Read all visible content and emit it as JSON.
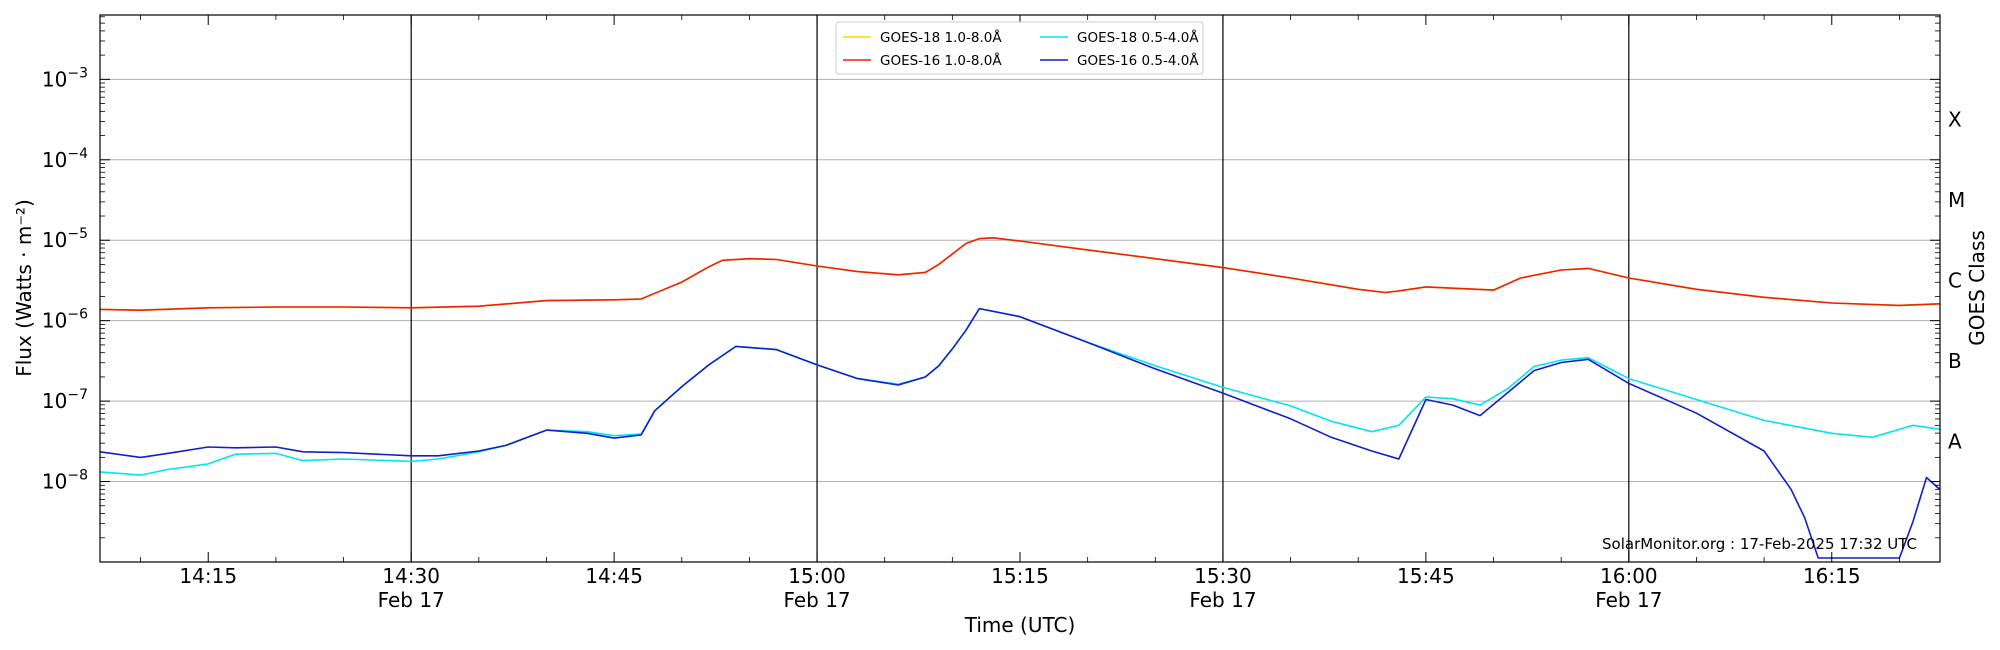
{
  "chart_data": {
    "type": "line",
    "title": "",
    "xlabel": "Time (UTC)",
    "ylabel": "Flux (Watts · m⁻²)",
    "ylabel_right": "GOES Class",
    "watermark": "SolarMonitor.org : 17-Feb-2025 17:32 UTC",
    "y_scale": "log",
    "ylim_exponents": [
      -9,
      1
    ],
    "xlim": [
      "14:07",
      "16:23"
    ],
    "grid": "horizontal at decades; vertical lines every 30 min",
    "legend_position": "top-center",
    "x_ticks": [
      {
        "time": "14:15",
        "label": "14:15",
        "date": ""
      },
      {
        "time": "14:30",
        "label": "14:30",
        "date": "Feb 17"
      },
      {
        "time": "14:45",
        "label": "14:45",
        "date": ""
      },
      {
        "time": "15:00",
        "label": "15:00",
        "date": "Feb 17"
      },
      {
        "time": "15:15",
        "label": "15:15",
        "date": ""
      },
      {
        "time": "15:30",
        "label": "15:30",
        "date": "Feb 17"
      },
      {
        "time": "15:45",
        "label": "15:45",
        "date": ""
      },
      {
        "time": "16:00",
        "label": "16:00",
        "date": "Feb 17"
      },
      {
        "time": "16:15",
        "label": "16:15",
        "date": ""
      }
    ],
    "y_ticks": [
      {
        "exp": -8,
        "base": "10",
        "sup": "−8"
      },
      {
        "exp": -7,
        "base": "10",
        "sup": "−7"
      },
      {
        "exp": -6,
        "base": "10",
        "sup": "−6"
      },
      {
        "exp": -5,
        "base": "10",
        "sup": "−5"
      },
      {
        "exp": -4,
        "base": "10",
        "sup": "−4"
      },
      {
        "exp": -3,
        "base": "10",
        "sup": "−3"
      }
    ],
    "goes_classes": [
      {
        "label": "A",
        "exp": -7.5
      },
      {
        "label": "B",
        "exp": -6.5
      },
      {
        "label": "C",
        "exp": -5.5
      },
      {
        "label": "M",
        "exp": -4.5
      },
      {
        "label": "X",
        "exp": -3.5
      }
    ],
    "series": [
      {
        "name": "GOES-18 1.0-8.0Å",
        "color": "#ffd700",
        "unit": "log10 flux",
        "x": [
          "14:07",
          "14:10",
          "14:15",
          "14:20",
          "14:25",
          "14:30",
          "14:35",
          "14:40",
          "14:45",
          "14:47",
          "14:48",
          "14:50",
          "14:52",
          "14:53",
          "14:55",
          "14:57",
          "15:00",
          "15:03",
          "15:06",
          "15:08",
          "15:09",
          "15:11",
          "15:12",
          "15:13",
          "15:15",
          "15:20",
          "15:25",
          "15:30",
          "15:35",
          "15:40",
          "15:42",
          "15:43",
          "15:45",
          "15:50",
          "15:52",
          "15:55",
          "15:57",
          "16:00",
          "16:05",
          "16:10",
          "16:15",
          "16:20",
          "16:23"
        ],
        "y": [
          -5.86,
          -5.87,
          -5.84,
          -5.83,
          -5.83,
          -5.84,
          -5.82,
          -5.75,
          -5.74,
          -5.73,
          -5.66,
          -5.52,
          -5.33,
          -5.25,
          -5.23,
          -5.24,
          -5.32,
          -5.39,
          -5.43,
          -5.4,
          -5.3,
          -5.04,
          -4.98,
          -4.97,
          -5.01,
          -5.12,
          -5.23,
          -5.34,
          -5.47,
          -5.61,
          -5.65,
          -5.63,
          -5.58,
          -5.62,
          -5.47,
          -5.37,
          -5.35,
          -5.47,
          -5.61,
          -5.71,
          -5.78,
          -5.81,
          -5.79
        ]
      },
      {
        "name": "GOES-16 1.0-8.0Å",
        "color": "#ee2200",
        "unit": "log10 flux",
        "x": [
          "14:07",
          "14:10",
          "14:15",
          "14:20",
          "14:25",
          "14:30",
          "14:35",
          "14:40",
          "14:45",
          "14:47",
          "14:48",
          "14:50",
          "14:52",
          "14:53",
          "14:55",
          "14:57",
          "15:00",
          "15:03",
          "15:06",
          "15:08",
          "15:09",
          "15:11",
          "15:12",
          "15:13",
          "15:15",
          "15:20",
          "15:25",
          "15:30",
          "15:35",
          "15:40",
          "15:42",
          "15:43",
          "15:45",
          "15:50",
          "15:52",
          "15:55",
          "15:57",
          "16:00",
          "16:05",
          "16:10",
          "16:15",
          "16:20",
          "16:23"
        ],
        "y": [
          -5.86,
          -5.87,
          -5.84,
          -5.83,
          -5.83,
          -5.84,
          -5.82,
          -5.75,
          -5.74,
          -5.73,
          -5.66,
          -5.52,
          -5.33,
          -5.25,
          -5.23,
          -5.24,
          -5.32,
          -5.39,
          -5.43,
          -5.4,
          -5.3,
          -5.04,
          -4.98,
          -4.97,
          -5.01,
          -5.12,
          -5.23,
          -5.34,
          -5.47,
          -5.61,
          -5.65,
          -5.63,
          -5.58,
          -5.62,
          -5.47,
          -5.37,
          -5.35,
          -5.47,
          -5.61,
          -5.71,
          -5.78,
          -5.81,
          -5.79
        ]
      },
      {
        "name": "GOES-18 0.5-4.0Å",
        "color": "#00e5ee",
        "unit": "log10 flux",
        "x": [
          "14:07",
          "14:10",
          "14:12",
          "14:15",
          "14:17",
          "14:20",
          "14:22",
          "14:25",
          "14:30",
          "14:32",
          "14:35",
          "14:37",
          "14:40",
          "14:43",
          "14:45",
          "14:47",
          "14:48",
          "14:50",
          "14:52",
          "14:54",
          "14:57",
          "15:00",
          "15:03",
          "15:06",
          "15:08",
          "15:09",
          "15:10",
          "15:11",
          "15:12",
          "15:15",
          "15:20",
          "15:25",
          "15:30",
          "15:35",
          "15:38",
          "15:41",
          "15:43",
          "15:45",
          "15:47",
          "15:49",
          "15:51",
          "15:53",
          "15:55",
          "15:57",
          "16:00",
          "16:05",
          "16:10",
          "16:15",
          "16:18",
          "16:21",
          "16:23"
        ],
        "y": [
          -7.88,
          -7.92,
          -7.85,
          -7.78,
          -7.66,
          -7.65,
          -7.74,
          -7.72,
          -7.75,
          -7.72,
          -7.63,
          -7.55,
          -7.36,
          -7.38,
          -7.43,
          -7.41,
          -7.12,
          -6.82,
          -6.55,
          -6.32,
          -6.36,
          -6.55,
          -6.72,
          -6.79,
          -6.7,
          -6.56,
          -6.35,
          -6.12,
          -5.85,
          -5.95,
          -6.27,
          -6.56,
          -6.83,
          -7.06,
          -7.25,
          -7.38,
          -7.3,
          -6.95,
          -6.97,
          -7.05,
          -6.85,
          -6.57,
          -6.49,
          -6.46,
          -6.72,
          -6.98,
          -7.24,
          -7.4,
          -7.45,
          -7.3,
          -7.35
        ]
      },
      {
        "name": "GOES-16 0.5-4.0Å",
        "color": "#1020cc",
        "unit": "log10 flux",
        "x": [
          "14:07",
          "14:10",
          "14:12",
          "14:15",
          "14:17",
          "14:20",
          "14:22",
          "14:25",
          "14:30",
          "14:32",
          "14:35",
          "14:37",
          "14:40",
          "14:43",
          "14:45",
          "14:47",
          "14:48",
          "14:50",
          "14:52",
          "14:54",
          "14:57",
          "15:00",
          "15:03",
          "15:06",
          "15:08",
          "15:09",
          "15:10",
          "15:11",
          "15:12",
          "15:15",
          "15:20",
          "15:25",
          "15:30",
          "15:35",
          "15:38",
          "15:41",
          "15:43",
          "15:45",
          "15:47",
          "15:49",
          "15:51",
          "15:53",
          "15:55",
          "15:57",
          "16:00",
          "16:05",
          "16:10",
          "16:12",
          "16:13",
          "16:14",
          "16:20",
          "16:21",
          "16:22",
          "16:23"
        ],
        "y": [
          -7.63,
          -7.7,
          -7.65,
          -7.57,
          -7.58,
          -7.57,
          -7.63,
          -7.64,
          -7.68,
          -7.68,
          -7.62,
          -7.55,
          -7.36,
          -7.4,
          -7.46,
          -7.42,
          -7.12,
          -6.82,
          -6.55,
          -6.32,
          -6.36,
          -6.55,
          -6.72,
          -6.8,
          -6.7,
          -6.56,
          -6.35,
          -6.12,
          -5.85,
          -5.95,
          -6.27,
          -6.6,
          -6.9,
          -7.22,
          -7.45,
          -7.62,
          -7.72,
          -6.98,
          -7.05,
          -7.18,
          -6.9,
          -6.62,
          -6.52,
          -6.48,
          -6.78,
          -7.15,
          -7.62,
          -8.1,
          -8.45,
          -8.95,
          -8.95,
          -8.5,
          -7.95,
          -8.1
        ]
      }
    ]
  }
}
